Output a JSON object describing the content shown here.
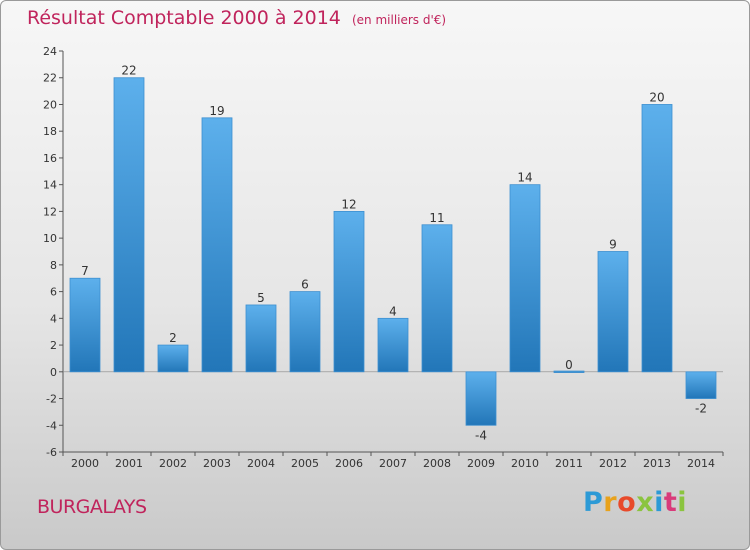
{
  "title": {
    "main": "Résultat Comptable 2000 à 2014",
    "unit_note": "(en milliers d'€)"
  },
  "commune": "BURGALAYS",
  "logo": {
    "letters": [
      "P",
      "r",
      "o",
      "x",
      "i",
      "t",
      "i"
    ],
    "colors": [
      "#2c9ad6",
      "#e8a21c",
      "#e84a2a",
      "#8bc43f",
      "#2c9ad6",
      "#d93a7a",
      "#8bc43f"
    ]
  },
  "colors": {
    "title": "#c0245c",
    "bar_light": "#5db0ec",
    "bar_dark": "#2276b8"
  },
  "chart_data": {
    "type": "bar",
    "title": "Résultat Comptable 2000 à 2014",
    "ylabel": "",
    "xlabel": "",
    "categories": [
      "2000",
      "2001",
      "2002",
      "2003",
      "2004",
      "2005",
      "2006",
      "2007",
      "2008",
      "2009",
      "2010",
      "2011",
      "2012",
      "2013",
      "2014"
    ],
    "values": [
      7,
      22,
      2,
      19,
      5,
      6,
      12,
      4,
      11,
      -4,
      14,
      0,
      9,
      20,
      -2
    ],
    "ylim": [
      -6,
      24
    ],
    "yticks": [
      -6,
      -4,
      -2,
      0,
      2,
      4,
      6,
      8,
      10,
      12,
      14,
      16,
      18,
      20,
      22,
      24
    ],
    "grid": false,
    "legend": "none"
  }
}
